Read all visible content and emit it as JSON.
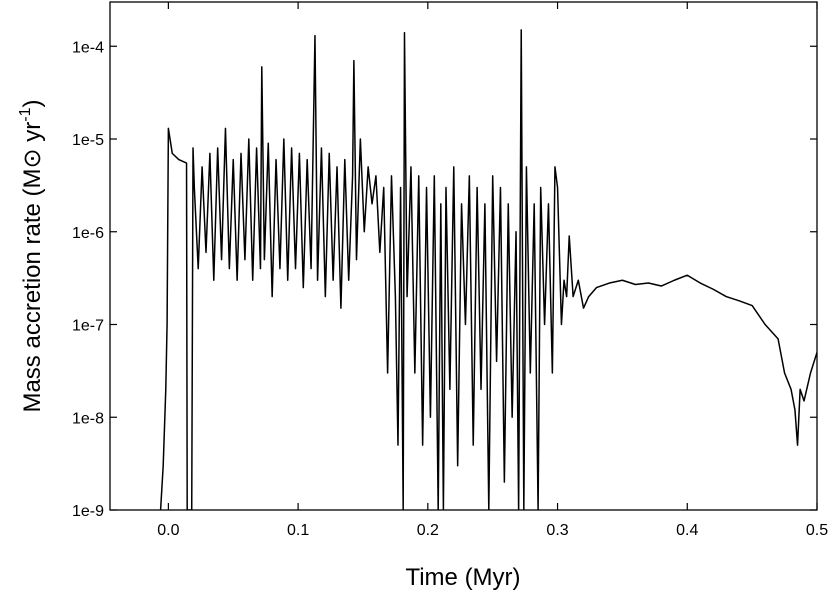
{
  "chart_data": {
    "type": "line",
    "x_label": "Time (Myr)",
    "y_label": {
      "main": "Mass accretion rate (M⊙ yr",
      "superscript": "-1",
      "end": ")"
    },
    "log_y": true,
    "xlim": [
      -0.045,
      0.5
    ],
    "ylim": [
      1e-09,
      0.0003
    ],
    "xticks": [
      {
        "value": 0,
        "label": "0.0"
      },
      0.1,
      0.2,
      0.3,
      0.4,
      0.5
    ],
    "yticks": [
      {
        "value": 1e-09,
        "label": "1e-9"
      },
      {
        "value": 1e-08,
        "label": "1e-8"
      },
      {
        "value": 1e-07,
        "label": "1e-7"
      },
      {
        "value": 1e-06,
        "label": "1e-6"
      },
      {
        "value": 1e-05,
        "label": "1e-5"
      },
      {
        "value": 0.0001,
        "label": "1e-4"
      }
    ],
    "color": "#000000",
    "x": [
      -0.006,
      -0.004,
      -0.002,
      -0.001,
      0.0,
      0.003,
      0.008,
      0.014,
      0.0145,
      0.018,
      0.019,
      0.02,
      0.023,
      0.026,
      0.029,
      0.032,
      0.035,
      0.038,
      0.041,
      0.044,
      0.047,
      0.05,
      0.053,
      0.056,
      0.059,
      0.062,
      0.065,
      0.068,
      0.071,
      0.072,
      0.074,
      0.077,
      0.08,
      0.083,
      0.086,
      0.089,
      0.092,
      0.095,
      0.098,
      0.101,
      0.104,
      0.107,
      0.11,
      0.113,
      0.115,
      0.118,
      0.121,
      0.124,
      0.127,
      0.13,
      0.133,
      0.136,
      0.139,
      0.142,
      0.143,
      0.145,
      0.148,
      0.151,
      0.154,
      0.157,
      0.16,
      0.163,
      0.166,
      0.169,
      0.172,
      0.175,
      0.177,
      0.179,
      0.181,
      0.182,
      0.184,
      0.187,
      0.19,
      0.193,
      0.196,
      0.199,
      0.202,
      0.205,
      0.208,
      0.21,
      0.212,
      0.214,
      0.217,
      0.22,
      0.223,
      0.226,
      0.229,
      0.232,
      0.235,
      0.238,
      0.241,
      0.244,
      0.247,
      0.25,
      0.253,
      0.256,
      0.259,
      0.262,
      0.265,
      0.268,
      0.27,
      0.272,
      0.274,
      0.276,
      0.279,
      0.282,
      0.285,
      0.287,
      0.29,
      0.293,
      0.296,
      0.298,
      0.3,
      0.303,
      0.305,
      0.307,
      0.309,
      0.312,
      0.316,
      0.32,
      0.324,
      0.33,
      0.34,
      0.35,
      0.36,
      0.37,
      0.38,
      0.39,
      0.4,
      0.41,
      0.42,
      0.43,
      0.44,
      0.45,
      0.46,
      0.47,
      0.475,
      0.48,
      0.483,
      0.485,
      0.487,
      0.49,
      0.495,
      0.5
    ],
    "values": [
      1e-09,
      3e-09,
      2e-08,
      1e-07,
      1.3e-05,
      7e-06,
      6e-06,
      5.5e-06,
      1e-09,
      1e-09,
      8e-06,
      3e-06,
      4e-07,
      5e-06,
      6e-07,
      7e-06,
      3e-07,
      8e-06,
      5e-07,
      1.3e-05,
      4e-07,
      6e-06,
      3e-07,
      7e-06,
      5e-07,
      1e-05,
      3e-07,
      8e-06,
      4e-07,
      6e-05,
      5e-07,
      9e-06,
      2e-07,
      6e-06,
      4e-07,
      1e-05,
      3e-07,
      8e-06,
      4e-07,
      7e-06,
      2.5e-07,
      6e-06,
      4e-07,
      0.00013,
      3e-07,
      8e-06,
      2e-07,
      7e-06,
      3e-07,
      5e-06,
      1.5e-07,
      6e-06,
      3e-07,
      4e-06,
      7e-05,
      5e-07,
      1e-05,
      1e-06,
      5e-06,
      2e-06,
      4e-06,
      6e-07,
      3e-06,
      3e-08,
      4e-06,
      2e-07,
      5e-09,
      3e-06,
      1e-09,
      0.00014,
      2e-07,
      5e-06,
      3e-08,
      4e-06,
      5e-09,
      3e-06,
      1e-08,
      4e-06,
      1e-09,
      2e-06,
      1e-09,
      3e-06,
      2e-08,
      5e-06,
      3e-09,
      2e-06,
      1e-07,
      4e-06,
      5e-09,
      3e-06,
      2e-08,
      2e-06,
      1e-09,
      4e-06,
      4e-08,
      3e-06,
      2e-09,
      2e-06,
      1e-08,
      1e-06,
      1e-09,
      0.00015,
      1e-09,
      5e-06,
      3e-08,
      2e-06,
      1e-09,
      3e-06,
      1e-07,
      2e-06,
      3e-08,
      5e-06,
      3e-06,
      1e-07,
      3e-07,
      2e-07,
      9e-07,
      2e-07,
      3e-07,
      1.5e-07,
      2e-07,
      2.5e-07,
      2.8e-07,
      3e-07,
      2.7e-07,
      2.8e-07,
      2.6e-07,
      3e-07,
      3.4e-07,
      2.8e-07,
      2.4e-07,
      2e-07,
      1.8e-07,
      1.6e-07,
      1e-07,
      7e-08,
      3e-08,
      2e-08,
      1.2e-08,
      5e-09,
      2e-08,
      1.5e-08,
      3e-08,
      5e-08
    ]
  }
}
